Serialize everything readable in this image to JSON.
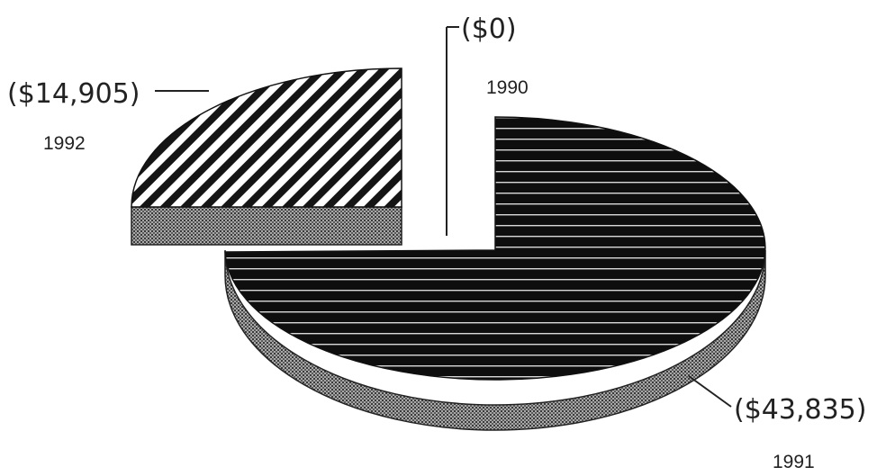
{
  "chart_data": {
    "type": "pie",
    "style": "3d-exploded",
    "slices": [
      {
        "year": "1990",
        "value": 0,
        "label": "($0)",
        "fill": "solid-black"
      },
      {
        "year": "1991",
        "value": -43835,
        "label": "($43,835)",
        "fill": "horizontal-stripes"
      },
      {
        "year": "1992",
        "value": -14905,
        "label": "($14,905)",
        "fill": "diagonal-hatch"
      }
    ],
    "colors": {
      "ink": "#111111",
      "side": "#888888",
      "background": "#ffffff"
    }
  }
}
